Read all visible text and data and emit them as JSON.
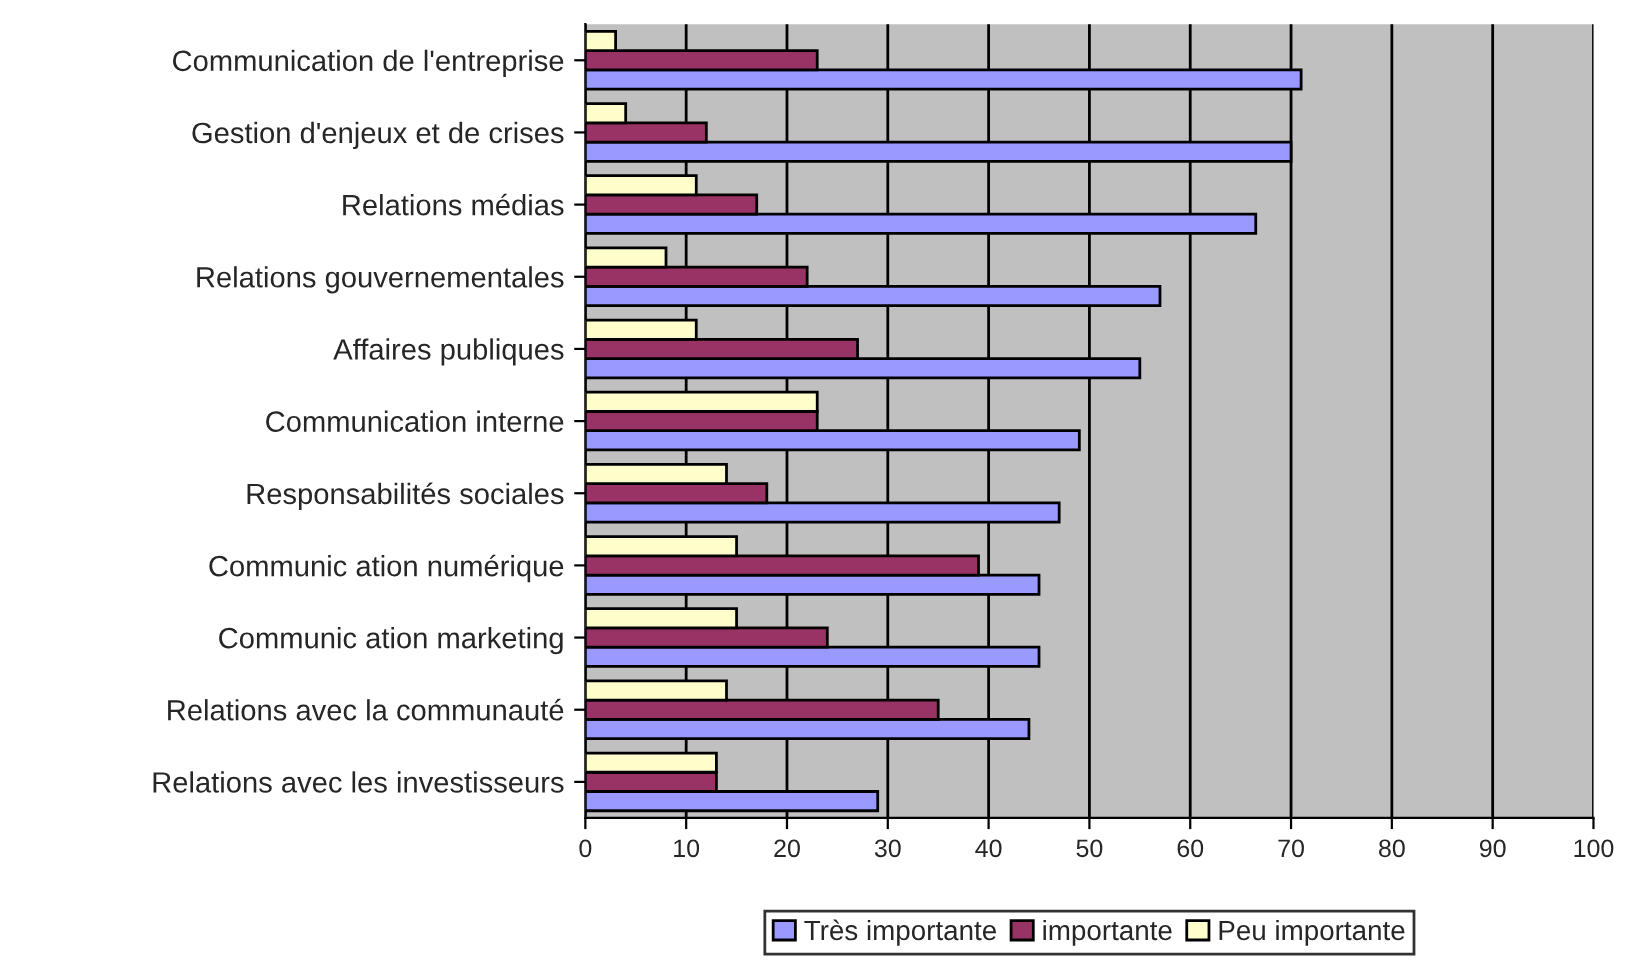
{
  "chart_data": {
    "type": "bar",
    "orientation": "horizontal",
    "categories": [
      "Communication de l'entreprise",
      "Gestion d'enjeux et de crises",
      "Relations médias",
      "Relations gouvernementales",
      "Affaires publiques",
      "Communication interne",
      "Responsabilités sociales",
      "Communic ation numérique",
      "Communic ation marketing",
      "Relations avec la communauté",
      "Relations avec les investisseurs"
    ],
    "series": [
      {
        "name": "Très importante",
        "color": "#9999ff",
        "values": [
          71,
          70,
          66.5,
          57,
          55,
          49,
          47,
          45,
          45,
          44,
          29
        ]
      },
      {
        "name": "importante",
        "color": "#993366",
        "values": [
          23,
          12,
          17,
          22,
          27,
          23,
          18,
          39,
          24,
          35,
          13
        ]
      },
      {
        "name": "Peu importante",
        "color": "#ffffcc",
        "values": [
          3,
          4,
          11,
          8,
          11,
          23,
          14,
          15,
          15,
          14,
          13
        ]
      }
    ],
    "xlim": [
      0,
      100
    ],
    "xticks": [
      0,
      10,
      20,
      30,
      40,
      50,
      60,
      70,
      80,
      90,
      100
    ],
    "grid": "x",
    "legend": "bottom"
  }
}
